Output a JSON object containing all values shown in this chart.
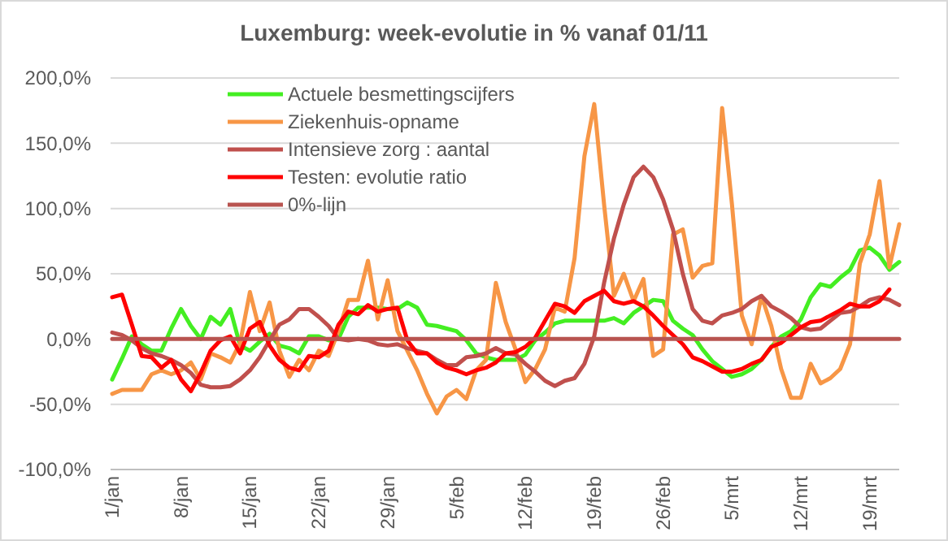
{
  "chart_data": {
    "type": "line",
    "title": "Luxemburg: week-evolutie in %  vanaf 01/11",
    "categories": [
      "1/jan",
      null,
      null,
      null,
      null,
      null,
      null,
      "8/jan",
      null,
      null,
      null,
      null,
      null,
      null,
      "15/jan",
      null,
      null,
      null,
      null,
      null,
      null,
      "22/jan",
      null,
      null,
      null,
      null,
      null,
      null,
      "29/jan",
      null,
      null,
      null,
      null,
      null,
      null,
      "5/feb",
      null,
      null,
      null,
      null,
      null,
      null,
      "12/feb",
      null,
      null,
      null,
      null,
      null,
      null,
      "19/feb",
      null,
      null,
      null,
      null,
      null,
      null,
      "26/feb",
      null,
      null,
      null,
      null,
      null,
      null,
      "5/mrt",
      null,
      null,
      null,
      null,
      null,
      null,
      "12/mrt",
      null,
      null,
      null,
      null,
      null,
      null,
      "19/mrt",
      null,
      null,
      null
    ],
    "series": [
      {
        "name": "Actuele besmettingscijfers",
        "color": "#44ee22",
        "values": [
          -31,
          -15,
          2,
          -4,
          -9,
          -9,
          8,
          23,
          10,
          0,
          17,
          11,
          23,
          -5,
          -9,
          -2,
          4,
          -5,
          -7,
          -11,
          2,
          2,
          -1,
          0,
          17,
          24,
          24,
          24,
          23,
          23,
          28,
          24,
          11,
          10,
          8,
          6,
          -1,
          -11,
          -14,
          -16,
          -16,
          -16,
          -12,
          -1,
          5,
          12,
          14,
          14,
          14,
          14,
          14,
          16,
          12,
          20,
          25,
          30,
          29,
          14,
          8,
          3,
          -8,
          -17,
          -23,
          -29,
          -27,
          -23,
          -16,
          -6,
          2,
          6,
          15,
          32,
          42,
          40,
          47,
          53,
          68,
          70,
          64,
          53,
          59
        ]
      },
      {
        "name": "Ziekenhuis-opname",
        "color": "#f79646",
        "values": [
          -42,
          -39,
          -39,
          -39,
          -27,
          -24,
          -27,
          -24,
          -18,
          -31,
          -11,
          -14,
          -18,
          -3,
          36,
          6,
          28,
          -9,
          -29,
          -16,
          -24,
          -9,
          -13,
          6,
          30,
          30,
          60,
          15,
          45,
          6,
          -9,
          -24,
          -42,
          -57,
          -44,
          -39,
          -46,
          -24,
          -16,
          43,
          13,
          -8,
          -33,
          -23,
          -8,
          24,
          21,
          62,
          140,
          180,
          103,
          33,
          50,
          29,
          46,
          -13,
          -8,
          80,
          84,
          47,
          56,
          58,
          177,
          103,
          18,
          -4,
          33,
          10,
          -23,
          -45,
          -45,
          -19,
          -34,
          -30,
          -23,
          -4,
          58,
          80,
          121,
          55,
          88
        ]
      },
      {
        "name": "Intensieve zorg : aantal",
        "color": "#c0504d",
        "values": [
          5,
          3,
          -1,
          -7,
          -11,
          -13,
          -16,
          -20,
          -26,
          -35,
          -37,
          -37,
          -36,
          -31,
          -24,
          -14,
          -1,
          11,
          15,
          23,
          23,
          17,
          10,
          0,
          -1,
          0,
          -1,
          -4,
          -5,
          -4,
          -7,
          -9,
          -11,
          -16,
          -20,
          -20,
          -14,
          -13,
          -11,
          -7,
          -11,
          -12,
          -19,
          -25,
          -32,
          -36,
          -32,
          -30,
          -19,
          2,
          43,
          77,
          103,
          124,
          132,
          124,
          107,
          84,
          50,
          23,
          14,
          12,
          18,
          20,
          23,
          29,
          33,
          25,
          21,
          16,
          9,
          7,
          8,
          14,
          20,
          21,
          25,
          30,
          32,
          30,
          26
        ]
      },
      {
        "name": "Testen: evolutie ratio",
        "color": "#ff0000",
        "values": [
          32,
          34,
          11,
          -13,
          -14,
          -22,
          -16,
          -31,
          -40,
          -26,
          -9,
          -1,
          2,
          -11,
          8,
          13,
          -5,
          -16,
          -22,
          -24,
          -13,
          -14,
          -9,
          11,
          21,
          19,
          26,
          21,
          23,
          24,
          -1,
          -11,
          -11,
          -18,
          -22,
          -24,
          -27,
          -24,
          -22,
          -18,
          -11,
          -10,
          -6,
          1,
          14,
          27,
          25,
          20,
          29,
          33,
          37,
          29,
          27,
          29,
          25,
          18,
          10,
          3,
          -4,
          -14,
          -17,
          -21,
          -25,
          -25,
          -23,
          -19,
          -16,
          -6,
          -3,
          3,
          9,
          13,
          14,
          18,
          22,
          27,
          25,
          25,
          29,
          38,
          null
        ]
      },
      {
        "name": "0%-lijn",
        "color": "#b85450",
        "values": [
          0,
          0,
          0,
          0,
          0,
          0,
          0,
          0,
          0,
          0,
          0,
          0,
          0,
          0,
          0,
          0,
          0,
          0,
          0,
          0,
          0,
          0,
          0,
          0,
          0,
          0,
          0,
          0,
          0,
          0,
          0,
          0,
          0,
          0,
          0,
          0,
          0,
          0,
          0,
          0,
          0,
          0,
          0,
          0,
          0,
          0,
          0,
          0,
          0,
          0,
          0,
          0,
          0,
          0,
          0,
          0,
          0,
          0,
          0,
          0,
          0,
          0,
          0,
          0,
          0,
          0,
          0,
          0,
          0,
          0,
          0,
          0,
          0,
          0,
          0,
          0,
          0,
          0,
          0,
          0,
          0
        ]
      }
    ],
    "ylim": [
      -100,
      200
    ],
    "yticks": [
      {
        "value": -100,
        "label": "-100,0%"
      },
      {
        "value": -50,
        "label": "-50,0%"
      },
      {
        "value": 0,
        "label": "0,0%"
      },
      {
        "value": 50,
        "label": "50,0%"
      },
      {
        "value": 100,
        "label": "100,0%"
      },
      {
        "value": 150,
        "label": "150,0%"
      },
      {
        "value": 200,
        "label": "200,0%"
      }
    ],
    "grid": "y",
    "legend": "top left",
    "marker": "none",
    "line_style": "solid"
  }
}
